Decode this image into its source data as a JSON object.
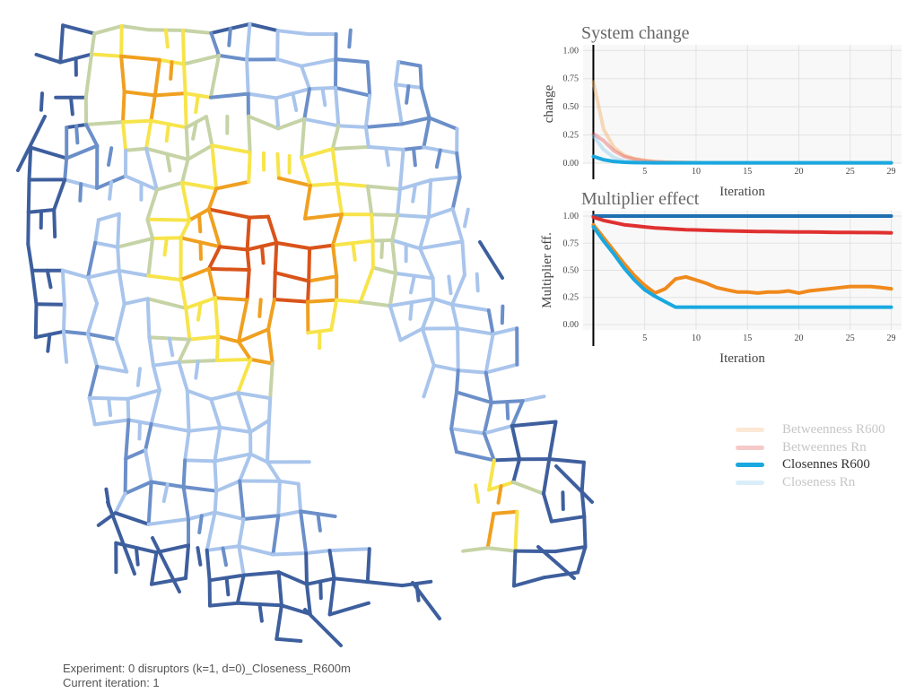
{
  "map": {
    "colors": {
      "low_dark": "#3e5f9e",
      "low_mid": "#6b8fc9",
      "low_light": "#a9c5ec",
      "mid": "#c6d3a6",
      "high_yellow": "#f7e44a",
      "higher_orange": "#f0a020",
      "highest_red": "#d9541a"
    }
  },
  "caption": {
    "experiment": "Experiment: 0 disruptors (k=1, d=0)_Closeness_R600m",
    "iteration": "Current iteration: 1"
  },
  "legend": {
    "items": [
      {
        "label": "Betweenness R600",
        "color": "#f5b06a",
        "active": false
      },
      {
        "label": "Betweennes Rn",
        "color": "#e04040",
        "active": false
      },
      {
        "label": "Closennes R600",
        "color": "#19a8e0",
        "active": true
      },
      {
        "label": "Closeness Rn",
        "color": "#7cc6ec",
        "active": false
      }
    ]
  },
  "chart_data": [
    {
      "type": "line",
      "title": "System change",
      "xlabel": "Iteration",
      "ylabel": "change",
      "xlim": [
        -1,
        30
      ],
      "ylim": [
        0,
        1.05
      ],
      "xticks": [
        5,
        10,
        15,
        20,
        25,
        29
      ],
      "yticks": [
        0.0,
        0.25,
        0.5,
        0.75,
        1.0
      ],
      "ytick_labels": [
        "0.00",
        "0.25",
        "0.50",
        "0.75",
        "1.00"
      ],
      "grid": true,
      "x": [
        0,
        1,
        2,
        3,
        4,
        5,
        6,
        7,
        8,
        9,
        10,
        11,
        12,
        13,
        14,
        15,
        16,
        17,
        18,
        19,
        20,
        21,
        22,
        23,
        24,
        25,
        26,
        27,
        28,
        29
      ],
      "series": [
        {
          "name": "Betweenness R600",
          "color": "#f5b06a",
          "opacity": 0.45,
          "values": [
            0.72,
            0.3,
            0.14,
            0.07,
            0.04,
            0.025,
            0.015,
            0.01,
            0.008,
            0.006,
            0.005,
            0.004,
            0.004,
            0.003,
            0.003,
            0.003,
            0.003,
            0.003,
            0.003,
            0.003,
            0.003,
            0.003,
            0.003,
            0.003,
            0.003,
            0.003,
            0.003,
            0.003,
            0.003,
            0.003
          ]
        },
        {
          "name": "Betweennes Rn",
          "color": "#e04040",
          "opacity": 0.35,
          "values": [
            0.26,
            0.2,
            0.11,
            0.06,
            0.035,
            0.02,
            0.012,
            0.008,
            0.006,
            0.005,
            0.004,
            0.004,
            0.003,
            0.003,
            0.003,
            0.003,
            0.003,
            0.003,
            0.003,
            0.003,
            0.003,
            0.003,
            0.003,
            0.003,
            0.003,
            0.003,
            0.003,
            0.003,
            0.003,
            0.003
          ]
        },
        {
          "name": "Closeness Rn",
          "color": "#7cc6ec",
          "opacity": 0.4,
          "values": [
            0.24,
            0.12,
            0.05,
            0.02,
            0.01,
            0.006,
            0.004,
            0.003,
            0.003,
            0.003,
            0.003,
            0.003,
            0.003,
            0.003,
            0.003,
            0.003,
            0.003,
            0.003,
            0.003,
            0.003,
            0.003,
            0.003,
            0.003,
            0.003,
            0.003,
            0.003,
            0.003,
            0.003,
            0.003,
            0.003
          ]
        },
        {
          "name": "Closennes R600",
          "color": "#19a8e0",
          "opacity": 1.0,
          "values": [
            0.06,
            0.03,
            0.015,
            0.008,
            0.005,
            0.004,
            0.003,
            0.003,
            0.003,
            0.003,
            0.003,
            0.003,
            0.003,
            0.003,
            0.003,
            0.003,
            0.003,
            0.003,
            0.003,
            0.003,
            0.003,
            0.003,
            0.003,
            0.003,
            0.003,
            0.003,
            0.003,
            0.003,
            0.003,
            0.003
          ]
        }
      ]
    },
    {
      "type": "line",
      "title": "Multiplier effect",
      "xlabel": "Iteration",
      "ylabel": "Multiplier eff.",
      "xlim": [
        -1,
        30
      ],
      "ylim": [
        -0.05,
        1.05
      ],
      "xticks": [
        5,
        10,
        15,
        20,
        25,
        29
      ],
      "yticks": [
        0.0,
        0.25,
        0.5,
        0.75,
        1.0
      ],
      "ytick_labels": [
        "0.00",
        "0.25",
        "0.50",
        "0.75",
        "1.00"
      ],
      "grid": true,
      "x": [
        0,
        1,
        2,
        3,
        4,
        5,
        6,
        7,
        8,
        9,
        10,
        11,
        12,
        13,
        14,
        15,
        16,
        17,
        18,
        19,
        20,
        21,
        22,
        23,
        24,
        25,
        26,
        27,
        28,
        29
      ],
      "series": [
        {
          "name": "Closeness Rn",
          "color": "#1f6fb0",
          "opacity": 1.0,
          "values": [
            1.0,
            1.0,
            1.0,
            1.0,
            1.0,
            1.0,
            1.0,
            1.0,
            1.0,
            1.0,
            1.0,
            1.0,
            1.0,
            1.0,
            1.0,
            1.0,
            1.0,
            1.0,
            1.0,
            1.0,
            1.0,
            1.0,
            1.0,
            1.0,
            1.0,
            1.0,
            1.0,
            1.0,
            1.0,
            1.0
          ]
        },
        {
          "name": "Betweennes Rn",
          "color": "#e03030",
          "opacity": 1.0,
          "values": [
            0.99,
            0.96,
            0.94,
            0.92,
            0.91,
            0.9,
            0.89,
            0.885,
            0.88,
            0.875,
            0.872,
            0.869,
            0.866,
            0.864,
            0.862,
            0.86,
            0.858,
            0.857,
            0.856,
            0.855,
            0.854,
            0.853,
            0.852,
            0.851,
            0.85,
            0.849,
            0.848,
            0.848,
            0.847,
            0.846
          ]
        },
        {
          "name": "Betweenness R600",
          "color": "#f08a1c",
          "opacity": 1.0,
          "values": [
            0.92,
            0.8,
            0.68,
            0.56,
            0.45,
            0.36,
            0.29,
            0.33,
            0.42,
            0.44,
            0.41,
            0.38,
            0.34,
            0.32,
            0.3,
            0.3,
            0.29,
            0.3,
            0.3,
            0.31,
            0.29,
            0.31,
            0.32,
            0.33,
            0.34,
            0.35,
            0.35,
            0.35,
            0.34,
            0.33
          ]
        },
        {
          "name": "Closennes R600",
          "color": "#19a8e0",
          "opacity": 1.0,
          "values": [
            0.9,
            0.77,
            0.65,
            0.52,
            0.41,
            0.32,
            0.26,
            0.21,
            0.16,
            0.16,
            0.16,
            0.16,
            0.16,
            0.16,
            0.16,
            0.16,
            0.16,
            0.16,
            0.16,
            0.16,
            0.16,
            0.16,
            0.16,
            0.16,
            0.16,
            0.16,
            0.16,
            0.16,
            0.16,
            0.16
          ]
        }
      ]
    }
  ]
}
